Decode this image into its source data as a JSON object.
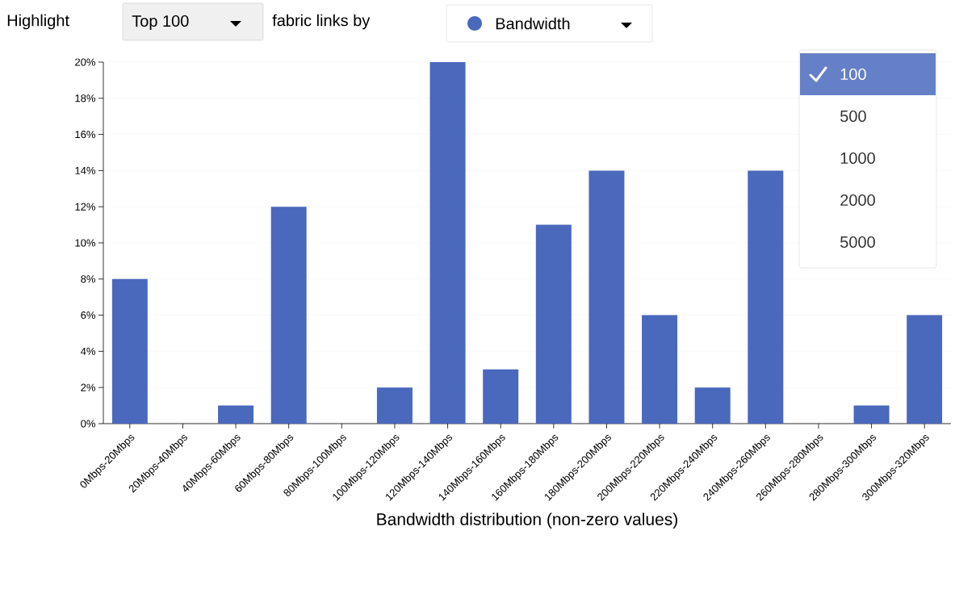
{
  "chart_data": {
    "type": "bar",
    "xlabel": "Bandwidth distribution (non-zero values)",
    "categories": [
      "0Mbps-20Mbps",
      "20Mbps-40Mbps",
      "40Mbps-60Mbps",
      "60Mbps-80Mbps",
      "80Mbps-100Mbps",
      "100Mbps-120Mbps",
      "120Mbps-140Mbps",
      "140Mbps-160Mbps",
      "160Mbps-180Mbps",
      "180Mbps-200Mbps",
      "200Mbps-220Mbps",
      "220Mbps-240Mbps",
      "240Mbps-260Mbps",
      "260Mbps-280Mbps",
      "280Mbps-300Mbps",
      "300Mbps-320Mbps"
    ],
    "values": [
      8,
      0,
      1,
      12,
      0,
      2,
      20,
      3,
      11,
      14,
      6,
      2,
      14,
      0,
      1,
      6
    ],
    "color": "#4a69bd",
    "ylim": [
      0,
      20
    ],
    "yticks": [
      {
        "value": 0,
        "label": "0%"
      },
      {
        "value": 2,
        "label": "2%"
      },
      {
        "value": 4,
        "label": "4%"
      },
      {
        "value": 6,
        "label": "6%"
      },
      {
        "value": 8,
        "label": "8%"
      },
      {
        "value": 10,
        "label": "10%"
      },
      {
        "value": 12,
        "label": "12%"
      },
      {
        "value": 14,
        "label": "14%"
      },
      {
        "value": 16,
        "label": "16%"
      },
      {
        "value": 18,
        "label": "18%"
      },
      {
        "value": 20,
        "label": "20%"
      }
    ],
    "grid": "y",
    "annotations": [
      "Highlight",
      "Top 100",
      "fabric links by",
      "Bandwidth",
      "100",
      "500",
      "1000",
      "2000",
      "5000"
    ]
  }
}
